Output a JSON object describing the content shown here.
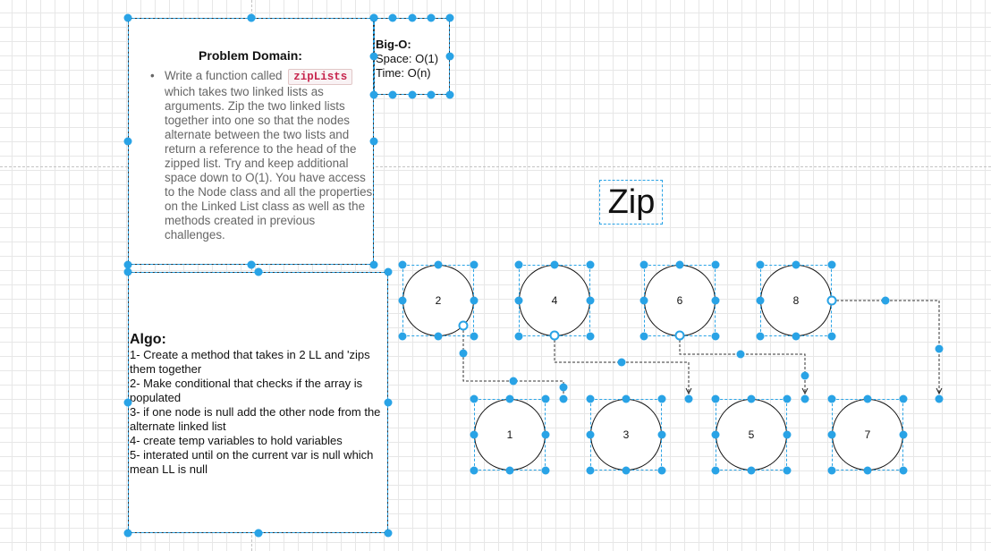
{
  "problem": {
    "title": "Problem Domain:",
    "bullet": "•",
    "text_before": "Write a function called",
    "code": "zipLists",
    "text_after": "which takes two linked lists as arguments. Zip the two linked lists together into one so that the nodes alternate between the two lists and return a reference to the head of the zipped list. Try and keep additional space down to O(1). You have access to the Node class and all the properties on the Linked List class as well as the methods created in previous challenges."
  },
  "bigo": {
    "title": "Big-O:",
    "space": "Space: O(1)",
    "time": "Time: O(n)"
  },
  "algo": {
    "title": "Algo:",
    "steps": [
      "1- Create a method that takes in 2 LL and 'zips them together",
      "2- Make conditional that checks if the array is populated",
      "3- if one node is null add the other node from the alternate linked list",
      "4- create temp variables to hold variables",
      "5- interated until on the current var is null which mean LL is null"
    ]
  },
  "diagram": {
    "label": "Zip",
    "top_nodes": [
      "2",
      "4",
      "6",
      "8"
    ],
    "bottom_nodes": [
      "1",
      "3",
      "5",
      "7"
    ]
  },
  "colors": {
    "selection": "#29a3e6",
    "grid": "#e7e7e7",
    "code_text": "#c7254e",
    "code_bg": "#f9f2f4",
    "stroke": "#222222"
  }
}
